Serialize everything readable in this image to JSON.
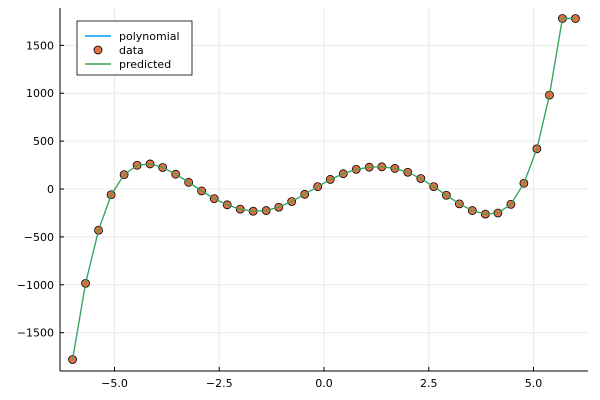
{
  "chart_data": {
    "type": "line",
    "title": "",
    "xlabel": "",
    "ylabel": "",
    "xlim": [
      -6.3,
      6.3
    ],
    "ylim": [
      -1900,
      1890
    ],
    "grid": true,
    "legend_position": "top-left",
    "x_ticks": [
      {
        "value": -5.0,
        "label": "−5.0"
      },
      {
        "value": -2.5,
        "label": "−2.5"
      },
      {
        "value": 0.0,
        "label": "0.0"
      },
      {
        "value": 2.5,
        "label": "2.5"
      },
      {
        "value": 5.0,
        "label": "5.0"
      }
    ],
    "y_ticks": [
      {
        "value": 1500,
        "label": "1500"
      },
      {
        "value": 1000,
        "label": "1000"
      },
      {
        "value": 500,
        "label": "500"
      },
      {
        "value": 0,
        "label": "0"
      },
      {
        "value": -500,
        "label": "−500"
      },
      {
        "value": -1000,
        "label": "−1000"
      },
      {
        "value": -1500,
        "label": "−1500"
      }
    ],
    "x": [
      -6.0,
      -5.69,
      -5.38,
      -5.08,
      -4.77,
      -4.46,
      -4.15,
      -3.85,
      -3.54,
      -3.23,
      -2.92,
      -2.62,
      -2.31,
      -2.0,
      -1.69,
      -1.38,
      -1.08,
      -0.77,
      -0.46,
      -0.15,
      0.15,
      0.46,
      0.77,
      1.08,
      1.38,
      1.69,
      2.0,
      2.31,
      2.62,
      2.92,
      3.23,
      3.54,
      3.85,
      4.15,
      4.46,
      4.77,
      5.08,
      5.38,
      5.69,
      6.0
    ],
    "series": [
      {
        "name": "polynomial",
        "kind": "line",
        "color": "#009AFA",
        "values": [
          -1780,
          -985,
          -430,
          -60,
          150,
          248,
          262,
          225,
          155,
          70,
          -20,
          -100,
          -165,
          -210,
          -232,
          -225,
          -190,
          -130,
          -55,
          25,
          100,
          160,
          205,
          228,
          232,
          215,
          175,
          110,
          25,
          -65,
          -155,
          -225,
          -262,
          -250,
          -160,
          60,
          420,
          980,
          1780,
          1780
        ],
        "hidden_under_overlay": true
      },
      {
        "name": "data",
        "kind": "scatter",
        "color": "#E26F46",
        "values": [
          -1780,
          -985,
          -430,
          -60,
          150,
          248,
          262,
          225,
          155,
          70,
          -20,
          -100,
          -165,
          -210,
          -232,
          -225,
          -190,
          -130,
          -55,
          25,
          100,
          160,
          205,
          228,
          232,
          215,
          175,
          110,
          25,
          -65,
          -155,
          -225,
          -262,
          -250,
          -160,
          60,
          420,
          980,
          1780,
          1780
        ]
      },
      {
        "name": "predicted",
        "kind": "line",
        "color": "#3DA44D",
        "values": [
          -1780,
          -985,
          -430,
          -60,
          150,
          248,
          262,
          225,
          155,
          70,
          -20,
          -100,
          -165,
          -210,
          -232,
          -225,
          -190,
          -130,
          -55,
          25,
          100,
          160,
          205,
          228,
          232,
          215,
          175,
          110,
          25,
          -65,
          -155,
          -225,
          -262,
          -250,
          -160,
          60,
          420,
          980,
          1780,
          1780
        ]
      }
    ],
    "axis_color": "#000000",
    "grid_color": "#e9e9e9"
  }
}
